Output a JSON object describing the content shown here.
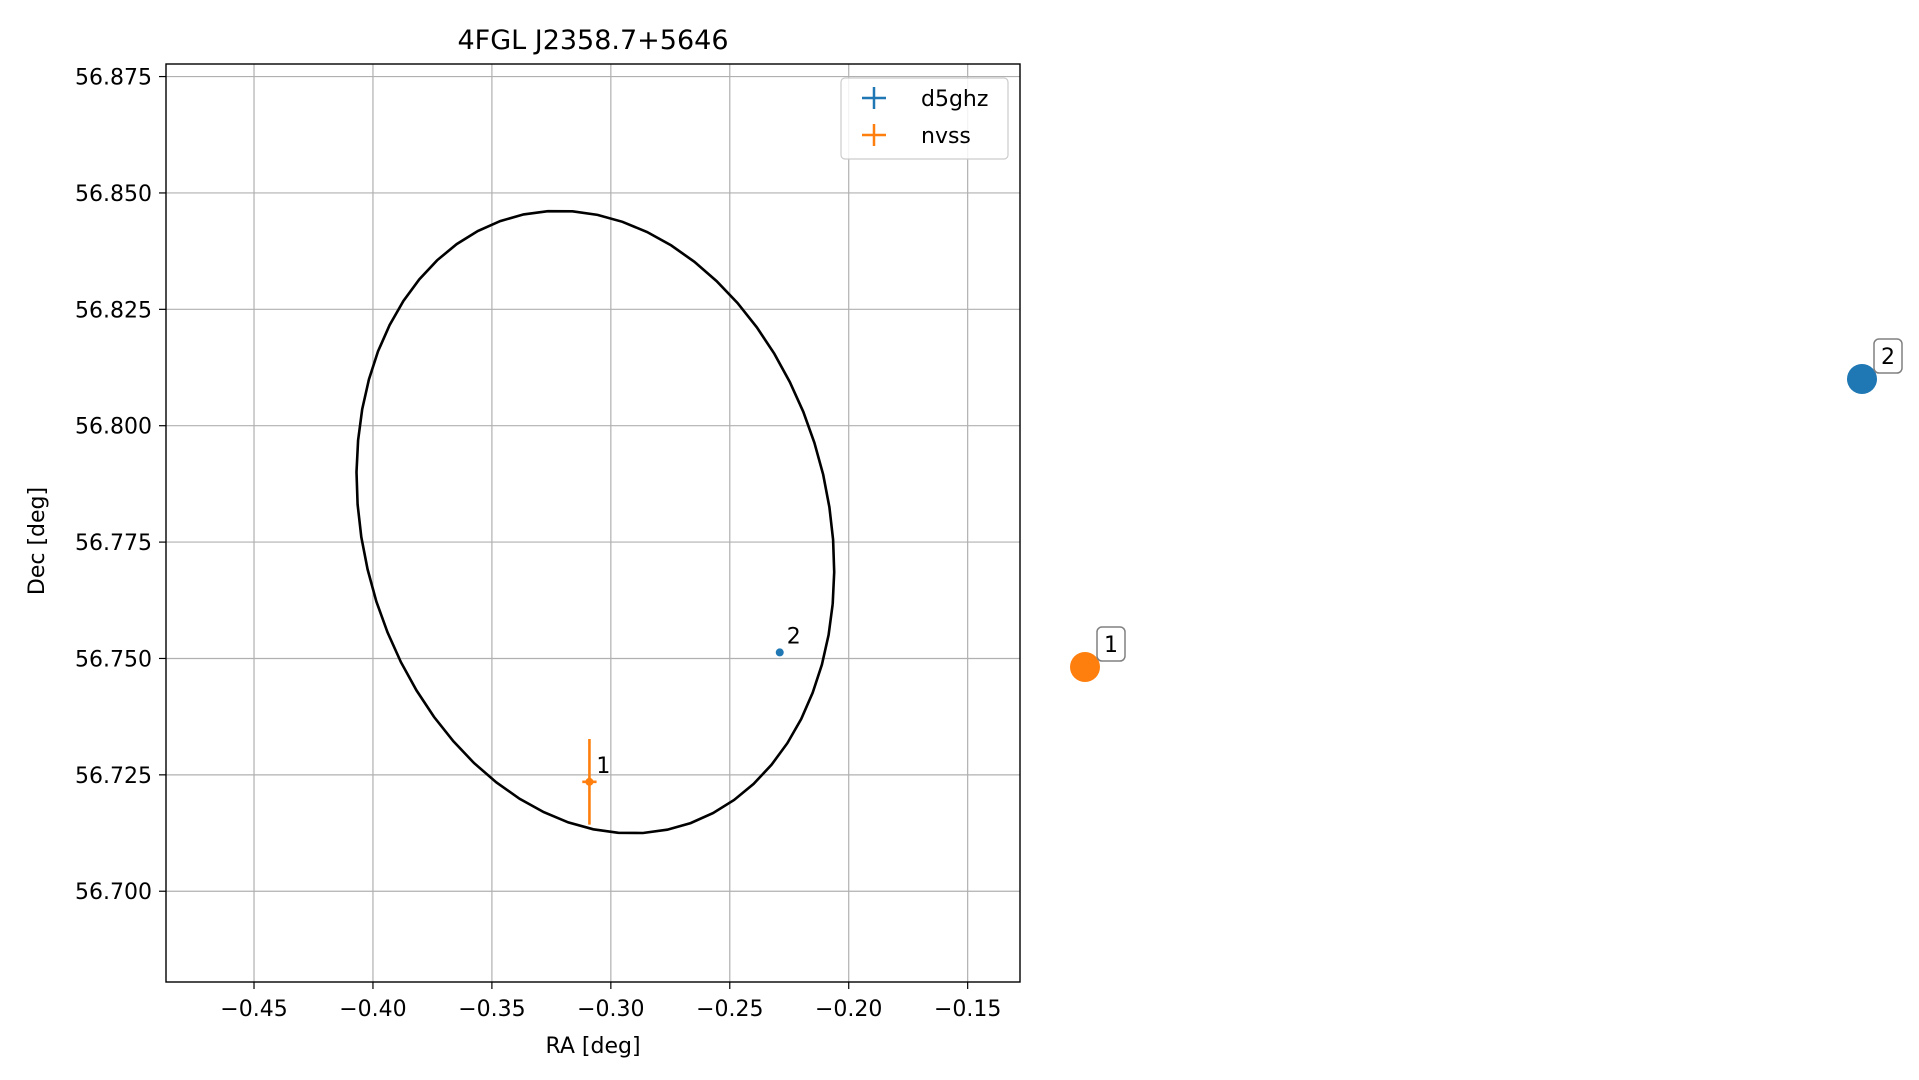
{
  "chart_data": {
    "type": "scatter",
    "title": "4FGL J2358.7+5646",
    "xlabel": "RA [deg]",
    "ylabel": "Dec [deg]",
    "xlim": [
      -0.487,
      -0.128
    ],
    "ylim": [
      56.6805,
      56.8777
    ],
    "xticks": [
      -0.45,
      -0.4,
      -0.35,
      -0.3,
      -0.25,
      -0.2,
      -0.15
    ],
    "xtick_labels": [
      "−0.45",
      "−0.40",
      "−0.35",
      "−0.30",
      "−0.25",
      "−0.20",
      "−0.15"
    ],
    "yticks": [
      56.7,
      56.725,
      56.75,
      56.775,
      56.8,
      56.825,
      56.85,
      56.875
    ],
    "ytick_labels": [
      "56.700",
      "56.725",
      "56.750",
      "56.775",
      "56.800",
      "56.825",
      "56.850",
      "56.875"
    ],
    "grid": true,
    "legend_position": "top-right",
    "ellipse": {
      "center": [
        -0.3065,
        56.7793
      ],
      "semi_axis_ra": 0.1013,
      "semi_axis_dec": 0.0655,
      "angle_deg": -10,
      "color": "#000000"
    },
    "series": [
      {
        "name": "d5ghz",
        "color": "#1f77b4",
        "points": [
          {
            "x": -0.229,
            "y": 56.7513,
            "xerr": 0.0,
            "yerr": 0.0,
            "label": "2"
          }
        ]
      },
      {
        "name": "nvss",
        "color": "#ff7f0e",
        "points": [
          {
            "x": -0.309,
            "y": 56.7235,
            "xerr": 0.003,
            "yerr": 0.0092,
            "label": "1"
          }
        ]
      }
    ],
    "side_markers": [
      {
        "label": "1",
        "color": "#ff7f0e"
      },
      {
        "label": "2",
        "color": "#1f77b4"
      }
    ]
  }
}
